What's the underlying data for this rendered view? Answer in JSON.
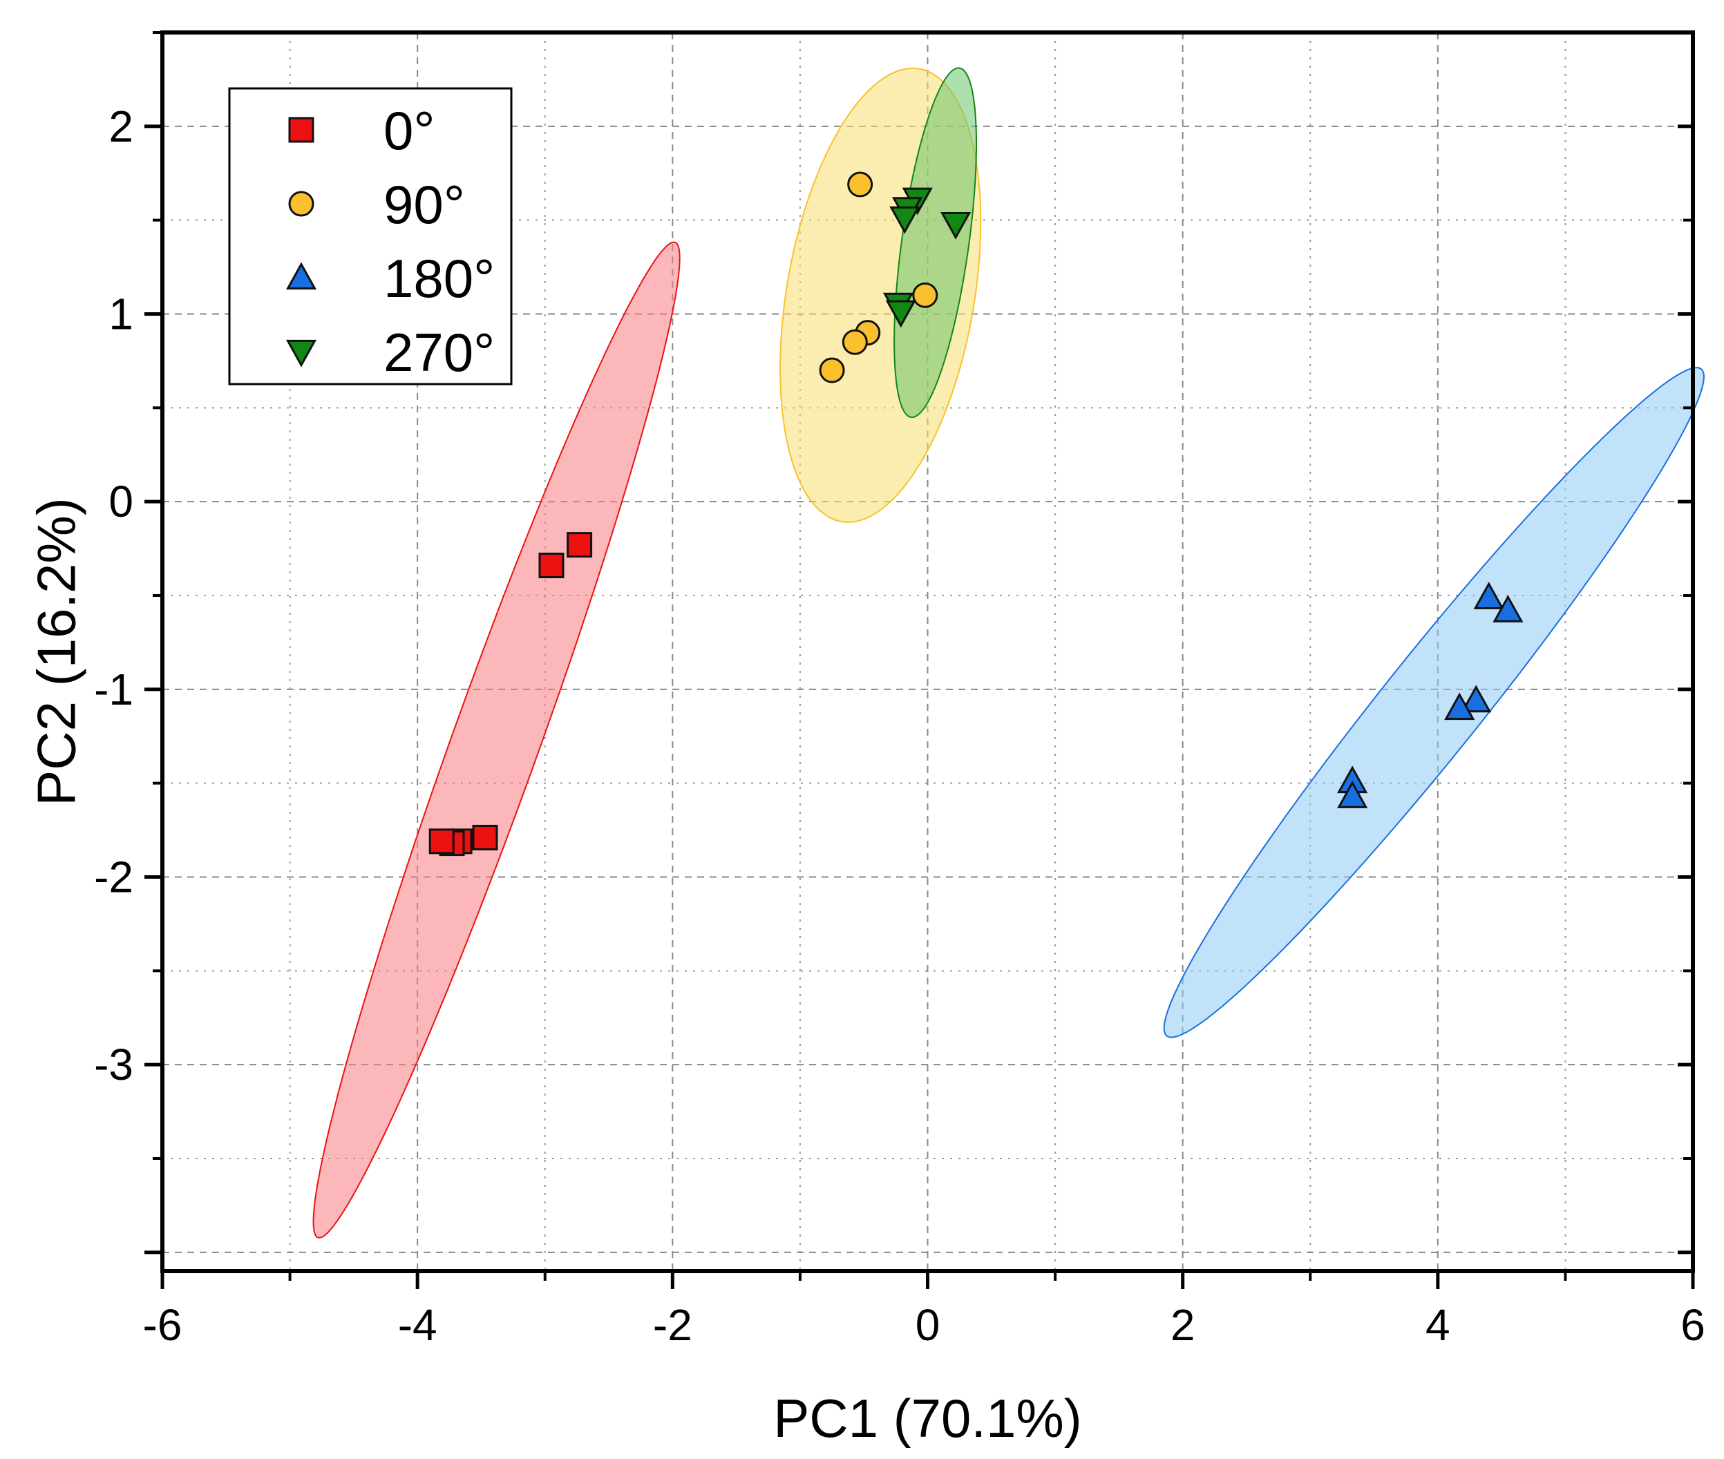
{
  "chart_data": {
    "type": "scatter",
    "title": "",
    "xlabel": "PC1 (70.1%)",
    "ylabel": "PC2 (16.2%)",
    "xlim": [
      -6,
      6
    ],
    "ylim": [
      -4.1,
      2.5
    ],
    "x_major_ticks": [
      -6,
      -4,
      -2,
      0,
      2,
      4,
      6
    ],
    "x_tick_labels": [
      "-6",
      "-4",
      "-2",
      "0",
      "2",
      "4",
      "6"
    ],
    "y_major_ticks": [
      -3,
      -2,
      -1,
      0,
      1,
      2
    ],
    "y_tick_labels": [
      "-3",
      "-2",
      "-1",
      "0",
      "1",
      "2"
    ],
    "grid": true,
    "legend_position": "top-left",
    "series": [
      {
        "name": "0°",
        "marker": "square",
        "color": "#ee1111",
        "ellipse_color": "#f77b80",
        "points": [
          [
            -2.95,
            -0.34
          ],
          [
            -2.73,
            -0.23
          ],
          [
            -3.47,
            -1.79
          ],
          [
            -3.67,
            -1.81
          ],
          [
            -3.73,
            -1.82
          ],
          [
            -3.81,
            -1.81
          ]
        ],
        "ellipse": {
          "cx": -3.38,
          "cy": -1.27,
          "a": 3.0,
          "b": 0.32,
          "angle_deg": 62
        }
      },
      {
        "name": "90°",
        "marker": "circle",
        "color": "#fbc02d",
        "ellipse_color": "#f7df70",
        "points": [
          [
            -0.53,
            1.69
          ],
          [
            -0.02,
            1.1
          ],
          [
            -0.47,
            0.9
          ],
          [
            -0.57,
            0.85
          ],
          [
            -0.75,
            0.7
          ]
        ],
        "ellipse": {
          "cx": -0.37,
          "cy": 1.1,
          "a": 1.25,
          "b": 0.72,
          "angle_deg": 72
        }
      },
      {
        "name": "180°",
        "marker": "triangle-up",
        "color": "#1a6fe0",
        "ellipse_color": "#8ecaf2",
        "points": [
          [
            4.4,
            -0.51
          ],
          [
            4.55,
            -0.58
          ],
          [
            4.3,
            -1.06
          ],
          [
            4.17,
            -1.1
          ],
          [
            3.33,
            -1.49
          ],
          [
            3.33,
            -1.57
          ]
        ],
        "ellipse": {
          "cx": 3.97,
          "cy": -1.07,
          "a": 2.75,
          "b": 0.32,
          "angle_deg": 40
        }
      },
      {
        "name": "270°",
        "marker": "triangle-down",
        "color": "#118811",
        "ellipse_color": "#6cc46c",
        "points": [
          [
            -0.08,
            1.61
          ],
          [
            -0.16,
            1.56
          ],
          [
            0.22,
            1.48
          ],
          [
            -0.18,
            1.51
          ],
          [
            -0.23,
            1.05
          ],
          [
            -0.21,
            1.01
          ]
        ],
        "ellipse": {
          "cx": 0.06,
          "cy": 1.38,
          "a": 0.95,
          "b": 0.26,
          "angle_deg": 78
        }
      }
    ]
  }
}
